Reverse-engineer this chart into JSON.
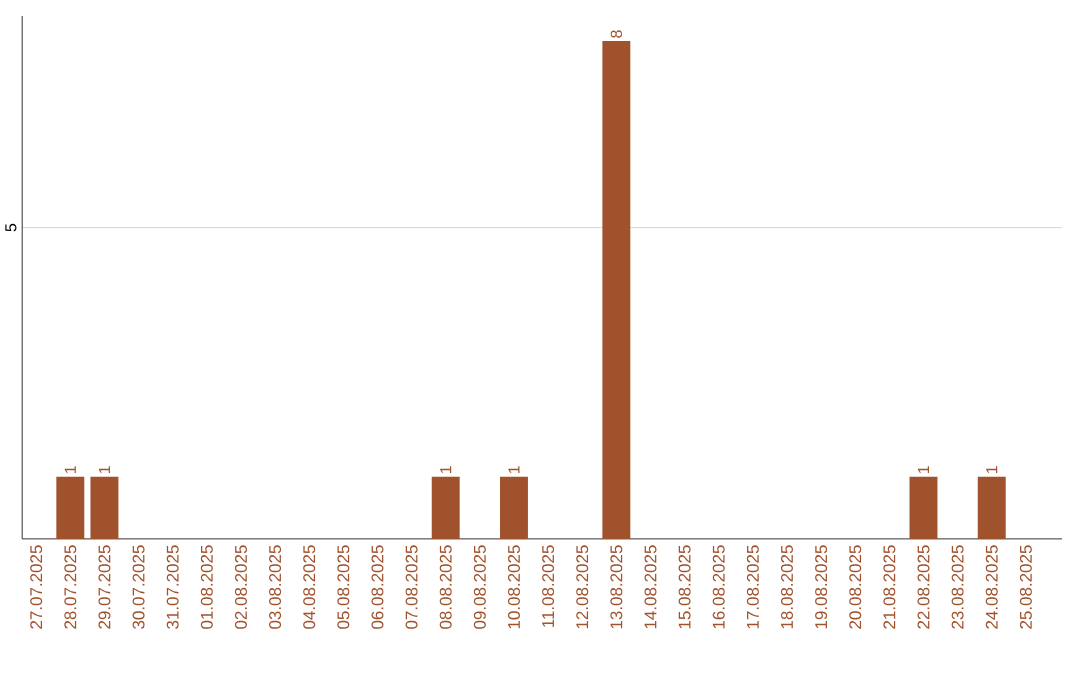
{
  "chart_data": {
    "type": "bar",
    "categories": [
      "27.07.2025",
      "28.07.2025",
      "29.07.2025",
      "30.07.2025",
      "31.07.2025",
      "01.08.2025",
      "02.08.2025",
      "03.08.2025",
      "04.08.2025",
      "05.08.2025",
      "06.08.2025",
      "07.08.2025",
      "08.08.2025",
      "09.08.2025",
      "10.08.2025",
      "11.08.2025",
      "12.08.2025",
      "13.08.2025",
      "14.08.2025",
      "15.08.2025",
      "16.08.2025",
      "17.08.2025",
      "18.08.2025",
      "19.08.2025",
      "20.08.2025",
      "21.08.2025",
      "22.08.2025",
      "23.08.2025",
      "24.08.2025",
      "25.08.2025"
    ],
    "values": [
      0,
      1,
      1,
      0,
      0,
      0,
      0,
      0,
      0,
      0,
      0,
      0,
      1,
      0,
      1,
      0,
      0,
      8,
      0,
      0,
      0,
      0,
      0,
      0,
      0,
      0,
      1,
      0,
      1,
      0
    ],
    "value_labels": [
      null,
      "1",
      "1",
      null,
      null,
      null,
      null,
      null,
      null,
      null,
      null,
      null,
      "1",
      null,
      "1",
      null,
      null,
      "8",
      null,
      null,
      null,
      null,
      null,
      null,
      null,
      null,
      "1",
      null,
      "1",
      null
    ],
    "color": "#a0522d",
    "ylim": [
      0,
      8.4
    ],
    "yticks": [
      5
    ],
    "grid": "y"
  }
}
